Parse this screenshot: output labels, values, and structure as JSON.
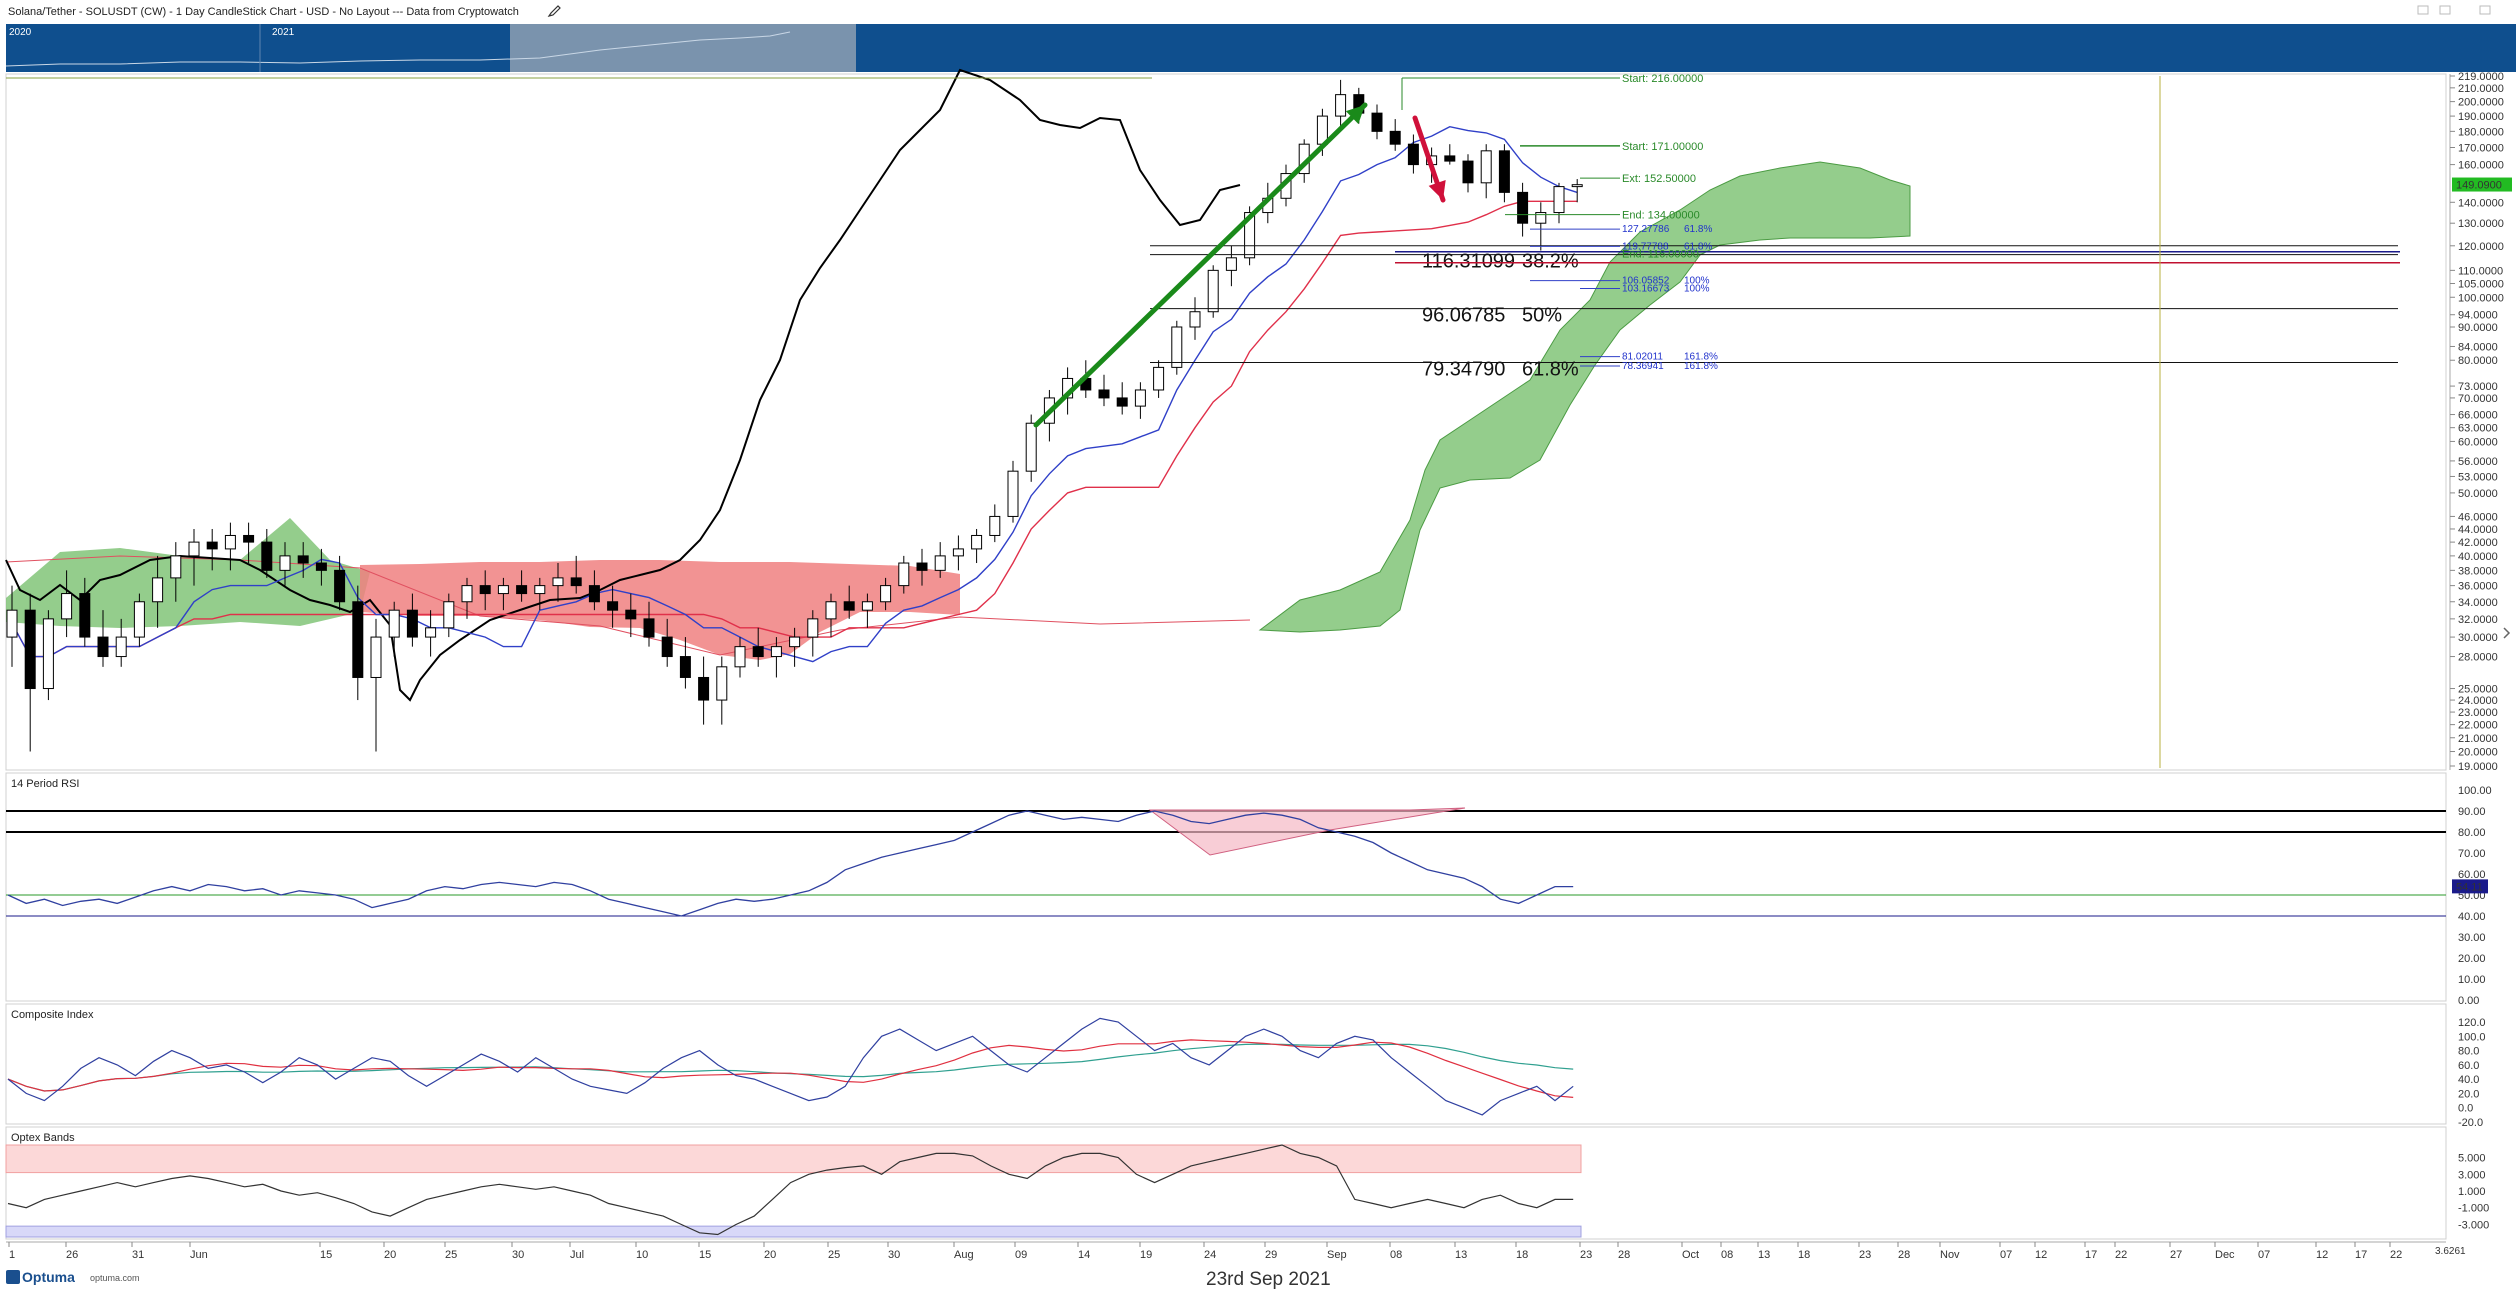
{
  "header": {
    "title": "Solana/Tether - SOLUSDT (CW) - 1 Day CandleStick Chart - USD - No Layout --- Data from Cryptowatch",
    "nav_years": [
      "2020",
      "2021"
    ]
  },
  "footer": {
    "brand": "Optuma",
    "brand_url": "optuma.com",
    "date": "23rd Sep 2021",
    "corner_value": "3.6261"
  },
  "colors": {
    "bull_candle": "#ffffff",
    "bear_candle": "#000000",
    "kijun": "#e0304a",
    "tenkan": "#3040c8",
    "cloud_bull": "#79c06f",
    "cloud_bear": "#f08080",
    "arrow_up": "#1a8a1a",
    "arrow_down": "#d0103a",
    "nav_bg": "#0f4f8e",
    "price_tag": "#22bb22",
    "rsi_tag": "#1a1a8a"
  },
  "price_axis": {
    "labels": [
      "219.0000",
      "210.0000",
      "200.0000",
      "190.0000",
      "180.0000",
      "170.0000",
      "160.0000",
      "149.0900",
      "140.0000",
      "130.0000",
      "120.0000",
      "110.0000",
      "105.0000",
      "100.0000",
      "94.0000",
      "90.0000",
      "84.0000",
      "80.0000",
      "73.0000",
      "70.0000",
      "66.0000",
      "63.0000",
      "60.0000",
      "56.0000",
      "53.0000",
      "50.0000",
      "46.0000",
      "44.0000",
      "42.0000",
      "40.0000",
      "38.0000",
      "36.0000",
      "34.0000",
      "32.0000",
      "30.0000",
      "28.0000",
      "25.0000",
      "24.0000",
      "23.0000",
      "22.0000",
      "21.0000",
      "20.0000",
      "19.0000"
    ],
    "current_price": "149.0900"
  },
  "fib_labels": [
    {
      "price": "116.31099",
      "pct": "38.2%"
    },
    {
      "price": "96.06785",
      "pct": "50%"
    },
    {
      "price": "79.34790",
      "pct": "61.8%"
    }
  ],
  "projection_labels": {
    "start": "Start: 216.00000",
    "start2": "Start: 171.00000",
    "ext": "Ext: 152.50000",
    "end1": "End: 134.00000",
    "end2": "End: 116.00000",
    "levels": [
      {
        "value": "127.27786",
        "pct": "61.8%"
      },
      {
        "value": "119.77788",
        "pct": "61.8%"
      },
      {
        "value": "106.05852",
        "pct": "100%"
      },
      {
        "value": "103.16673",
        "pct": "100%"
      },
      {
        "value": "81.02011",
        "pct": "161.8%"
      },
      {
        "value": "78.36941",
        "pct": "161.8%"
      }
    ]
  },
  "panels": {
    "rsi": {
      "title": "14 Period RSI",
      "labels": [
        "100.00",
        "90.00",
        "80.00",
        "70.00",
        "60.00",
        "50.00",
        "40.00",
        "30.00",
        "20.00",
        "10.00",
        "0.00"
      ],
      "current": "54.11"
    },
    "composite": {
      "title": "Composite Index",
      "labels": [
        "120.0",
        "100.0",
        "80.0",
        "60.0",
        "40.0",
        "20.0",
        "0.0",
        "-20.0"
      ]
    },
    "optex": {
      "title": "Optex Bands",
      "labels": [
        "5.000",
        "3.000",
        "1.000",
        "-1.000",
        "-3.000"
      ]
    }
  },
  "x_axis": {
    "labels": [
      "1",
      "26",
      "31",
      "Jun",
      "15",
      "20",
      "25",
      "30",
      "Jul",
      "10",
      "15",
      "20",
      "25",
      "30",
      "Aug",
      "09",
      "14",
      "19",
      "24",
      "29",
      "Sep",
      "08",
      "13",
      "18",
      "23",
      "28",
      "Oct",
      "08",
      "13",
      "18",
      "23",
      "28",
      "Nov",
      "07",
      "12",
      "17",
      "22",
      "27",
      "Dec",
      "07",
      "12",
      "17",
      "22"
    ]
  },
  "chart_data": {
    "type": "candlestick",
    "title": "Solana/Tether - SOLUSDT (CW) - 1 Day CandleStick Chart - USD",
    "y_scale": "log",
    "ylim": [
      19,
      219
    ],
    "candles": [
      [
        30,
        36,
        27,
        33
      ],
      [
        33,
        35,
        20,
        25
      ],
      [
        25,
        33,
        24,
        32
      ],
      [
        32,
        38,
        30,
        35
      ],
      [
        35,
        37,
        29,
        30
      ],
      [
        30,
        33,
        27,
        28
      ],
      [
        28,
        32,
        27,
        30
      ],
      [
        30,
        35,
        29,
        34
      ],
      [
        34,
        40,
        31,
        37
      ],
      [
        37,
        42,
        34,
        40
      ],
      [
        40,
        44,
        36,
        42
      ],
      [
        42,
        44,
        38,
        41
      ],
      [
        41,
        45,
        38,
        43
      ],
      [
        43,
        45,
        39,
        42
      ],
      [
        42,
        44,
        37,
        38
      ],
      [
        38,
        42,
        36,
        40
      ],
      [
        40,
        42,
        37,
        39
      ],
      [
        39,
        41,
        36,
        38
      ],
      [
        38,
        40,
        33,
        34
      ],
      [
        34,
        36,
        24,
        26
      ],
      [
        26,
        32,
        20,
        30
      ],
      [
        30,
        34,
        28,
        33
      ],
      [
        33,
        35,
        29,
        30
      ],
      [
        30,
        33,
        28,
        31
      ],
      [
        31,
        35,
        30,
        34
      ],
      [
        34,
        37,
        32,
        36
      ],
      [
        36,
        38,
        33,
        35
      ],
      [
        35,
        37,
        33,
        36
      ],
      [
        36,
        38,
        34,
        35
      ],
      [
        35,
        37,
        33,
        36
      ],
      [
        36,
        39,
        34,
        37
      ],
      [
        37,
        40,
        35,
        36
      ],
      [
        36,
        38,
        33,
        34
      ],
      [
        34,
        36,
        31,
        33
      ],
      [
        33,
        35,
        30,
        32
      ],
      [
        32,
        34,
        29,
        30
      ],
      [
        30,
        32,
        27,
        28
      ],
      [
        28,
        30,
        25,
        26
      ],
      [
        26,
        28,
        22,
        24
      ],
      [
        24,
        28,
        22,
        27
      ],
      [
        27,
        30,
        26,
        29
      ],
      [
        29,
        31,
        27,
        28
      ],
      [
        28,
        30,
        26,
        29
      ],
      [
        29,
        31,
        27,
        30
      ],
      [
        30,
        33,
        28,
        32
      ],
      [
        32,
        35,
        30,
        34
      ],
      [
        34,
        36,
        32,
        33
      ],
      [
        33,
        35,
        31,
        34
      ],
      [
        34,
        37,
        33,
        36
      ],
      [
        36,
        40,
        35,
        39
      ],
      [
        39,
        41,
        36,
        38
      ],
      [
        38,
        42,
        37,
        40
      ],
      [
        40,
        43,
        38,
        41
      ],
      [
        41,
        44,
        39,
        43
      ],
      [
        43,
        48,
        42,
        46
      ],
      [
        46,
        56,
        45,
        54
      ],
      [
        54,
        66,
        52,
        64
      ],
      [
        64,
        72,
        60,
        70
      ],
      [
        70,
        78,
        66,
        75
      ],
      [
        75,
        80,
        70,
        72
      ],
      [
        72,
        76,
        68,
        70
      ],
      [
        70,
        74,
        66,
        68
      ],
      [
        68,
        74,
        65,
        72
      ],
      [
        72,
        80,
        70,
        78
      ],
      [
        78,
        92,
        76,
        90
      ],
      [
        90,
        100,
        86,
        95
      ],
      [
        95,
        112,
        93,
        110
      ],
      [
        110,
        120,
        104,
        115
      ],
      [
        115,
        138,
        112,
        135
      ],
      [
        135,
        150,
        130,
        142
      ],
      [
        142,
        160,
        138,
        155
      ],
      [
        155,
        175,
        150,
        172
      ],
      [
        172,
        195,
        165,
        190
      ],
      [
        190,
        216,
        180,
        205
      ],
      [
        205,
        210,
        185,
        192
      ],
      [
        192,
        198,
        175,
        180
      ],
      [
        180,
        188,
        168,
        172
      ],
      [
        172,
        178,
        155,
        160
      ],
      [
        160,
        170,
        150,
        165
      ],
      [
        165,
        172,
        160,
        162
      ],
      [
        162,
        166,
        145,
        150
      ],
      [
        150,
        172,
        142,
        168
      ],
      [
        168,
        172,
        140,
        145
      ],
      [
        145,
        150,
        124,
        130
      ],
      [
        130,
        140,
        118,
        135
      ],
      [
        135,
        150,
        130,
        148
      ],
      [
        148,
        152,
        140,
        149
      ]
    ],
    "rsi_current": 54.11,
    "fib_retracement": [
      {
        "level": "38.2%",
        "price": 116.31099
      },
      {
        "level": "50%",
        "price": 96.06785
      },
      {
        "level": "61.8%",
        "price": 79.3479
      }
    ]
  }
}
